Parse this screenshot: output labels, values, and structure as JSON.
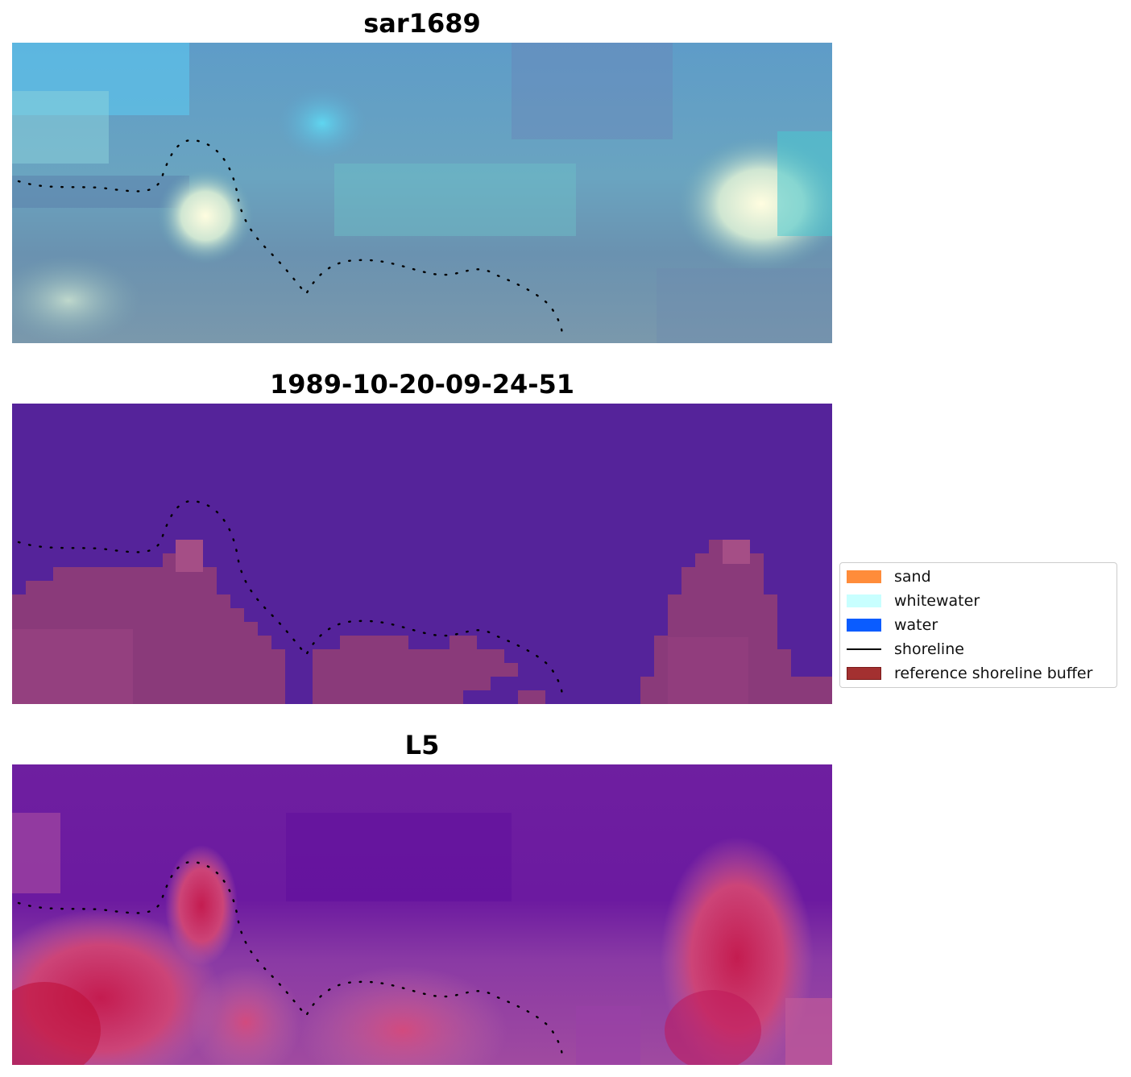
{
  "panels": [
    {
      "title": "sar1689"
    },
    {
      "title": "1989-10-20-09-24-51"
    },
    {
      "title": "L5"
    }
  ],
  "legend": {
    "items": [
      {
        "label": "sand",
        "color": "#ff8c3a",
        "kind": "patch"
      },
      {
        "label": "whitewater",
        "color": "#c8ffff",
        "kind": "patch"
      },
      {
        "label": "water",
        "color": "#0a5cff",
        "kind": "patch"
      },
      {
        "label": "shoreline",
        "color": "#000000",
        "kind": "line"
      },
      {
        "label": "reference shoreline buffer",
        "color": "#a33030",
        "kind": "patch"
      }
    ]
  },
  "colors": {
    "classified_background": "#55239a",
    "classified_buffer": "#8a3a7a",
    "l5_water": "#6a1a9e",
    "l5_land": "#c8205a",
    "shoreline_dots": "#000000"
  }
}
